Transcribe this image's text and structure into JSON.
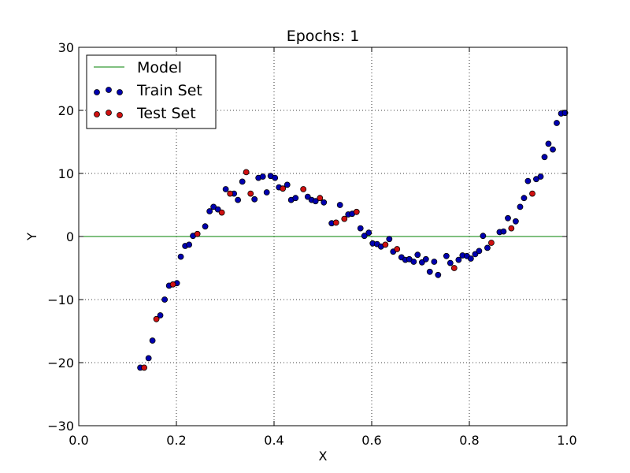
{
  "chart_data": {
    "type": "scatter",
    "title": "Epochs: 1",
    "xlabel": "X",
    "ylabel": "Y",
    "xlim": [
      0.0,
      1.0
    ],
    "ylim": [
      -30,
      30
    ],
    "xticks": [
      0.0,
      0.2,
      0.4,
      0.6,
      0.8,
      1.0
    ],
    "xtick_labels": [
      "0.0",
      "0.2",
      "0.4",
      "0.6",
      "0.8",
      "1.0"
    ],
    "yticks": [
      -30,
      -20,
      -10,
      0,
      10,
      20,
      30
    ],
    "ytick_labels": [
      "−30",
      "−20",
      "−10",
      "0",
      "10",
      "20",
      "30"
    ],
    "grid": true,
    "legend_position": "top-left",
    "colors": {
      "model": "#008000",
      "train": "#0000b0",
      "test": "#d01010"
    },
    "series": [
      {
        "name": "Model",
        "kind": "line",
        "x": [
          0.0,
          1.0
        ],
        "y": [
          0,
          0
        ]
      },
      {
        "name": "Train Set",
        "kind": "scatter",
        "x": [
          0.126,
          0.143,
          0.151,
          0.167,
          0.176,
          0.185,
          0.201,
          0.209,
          0.218,
          0.226,
          0.234,
          0.259,
          0.268,
          0.276,
          0.285,
          0.301,
          0.318,
          0.326,
          0.335,
          0.36,
          0.368,
          0.377,
          0.385,
          0.393,
          0.402,
          0.41,
          0.427,
          0.435,
          0.444,
          0.469,
          0.477,
          0.485,
          0.502,
          0.518,
          0.535,
          0.552,
          0.56,
          0.577,
          0.585,
          0.594,
          0.602,
          0.611,
          0.619,
          0.636,
          0.644,
          0.661,
          0.669,
          0.677,
          0.686,
          0.694,
          0.703,
          0.711,
          0.719,
          0.728,
          0.736,
          0.753,
          0.761,
          0.778,
          0.786,
          0.795,
          0.803,
          0.812,
          0.82,
          0.828,
          0.837,
          0.862,
          0.87,
          0.879,
          0.895,
          0.904,
          0.912,
          0.92,
          0.937,
          0.946,
          0.954,
          0.962,
          0.971,
          0.979,
          0.988,
          0.996
        ],
        "y": [
          -20.8,
          -19.3,
          -16.5,
          -12.5,
          -10.0,
          -7.8,
          -7.4,
          -3.2,
          -1.5,
          -1.3,
          0.1,
          1.6,
          4.0,
          4.7,
          4.3,
          7.5,
          6.8,
          5.8,
          8.7,
          5.9,
          9.3,
          9.5,
          7.0,
          9.6,
          9.3,
          7.8,
          8.2,
          5.8,
          6.1,
          6.3,
          5.8,
          5.6,
          5.4,
          2.1,
          5.0,
          3.5,
          3.6,
          1.3,
          0.1,
          0.6,
          -1.1,
          -1.2,
          -1.6,
          -0.4,
          -2.4,
          -3.3,
          -3.7,
          -3.6,
          -4.0,
          -2.9,
          -4.1,
          -3.6,
          -5.6,
          -4.0,
          -6.1,
          -3.1,
          -4.2,
          -3.7,
          -3.0,
          -3.1,
          -3.5,
          -2.8,
          -2.3,
          0.1,
          -1.8,
          0.7,
          0.8,
          2.9,
          2.4,
          4.7,
          6.1,
          8.8,
          9.1,
          9.5,
          12.6,
          14.7,
          13.8,
          18.0,
          19.5,
          19.6
        ]
      },
      {
        "name": "Test Set",
        "kind": "scatter",
        "x": [
          0.134,
          0.159,
          0.193,
          0.243,
          0.293,
          0.31,
          0.343,
          0.352,
          0.418,
          0.46,
          0.494,
          0.527,
          0.544,
          0.569,
          0.628,
          0.652,
          0.769,
          0.845,
          0.886,
          0.929
        ],
        "y": [
          -20.8,
          -13.1,
          -7.6,
          0.4,
          3.8,
          6.8,
          10.2,
          6.8,
          7.6,
          7.5,
          6.1,
          2.2,
          2.8,
          3.9,
          -1.3,
          -2.0,
          -5.0,
          -1.0,
          1.3,
          6.8
        ]
      }
    ]
  }
}
